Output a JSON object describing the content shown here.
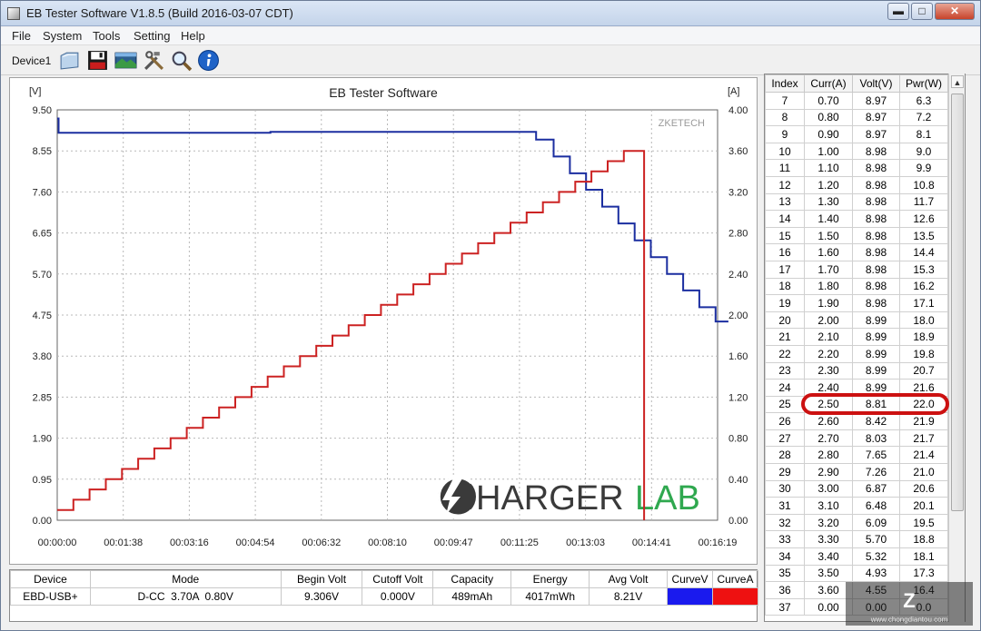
{
  "window": {
    "title": "EB Tester Software V1.8.5 (Build 2016-03-07 CDT)",
    "controls": {
      "minimize": "▬",
      "maximize": "□",
      "close": "✕"
    }
  },
  "menu": [
    "File",
    "System",
    "Tools",
    "Setting",
    "Help"
  ],
  "toolbar": {
    "device": "Device1",
    "buttons": [
      "open-icon",
      "save-icon",
      "image-icon",
      "tools-icon",
      "search-icon",
      "info-icon"
    ]
  },
  "chart": {
    "title": "EB Tester Software",
    "left_unit": "[V]",
    "right_unit": "[A]",
    "brand_small": "ZKETECH",
    "brand_big_dark": "HARGER",
    "brand_big_green": "LAB",
    "colors": {
      "voltage": "#1b2ea0",
      "current": "#cc2222",
      "brand_green": "#2fa84f"
    }
  },
  "chart_data": {
    "type": "line",
    "title": "EB Tester Software",
    "x_ticks": [
      "00:00:00",
      "00:01:38",
      "00:03:16",
      "00:04:54",
      "00:06:32",
      "00:08:10",
      "00:09:47",
      "00:11:25",
      "00:13:03",
      "00:14:41",
      "00:16:19"
    ],
    "y_left_ticks": [
      "9.50",
      "8.55",
      "7.60",
      "6.65",
      "5.70",
      "4.75",
      "3.80",
      "2.85",
      "1.90",
      "0.95",
      "0.00"
    ],
    "y_right_ticks": [
      "4.00",
      "3.60",
      "3.20",
      "2.80",
      "2.40",
      "2.00",
      "1.60",
      "1.20",
      "0.80",
      "0.40",
      "0.00"
    ],
    "ylim_left": [
      0,
      9.5
    ],
    "ylim_right": [
      0,
      4.0
    ],
    "xlim_seconds": [
      0,
      979
    ],
    "grid": true,
    "series": [
      {
        "name": "CurveV",
        "axis": "left",
        "color": "#1b2ea0",
        "points": [
          [
            0,
            9.3
          ],
          [
            2,
            8.97
          ],
          [
            315,
            8.97
          ],
          [
            316,
            8.99
          ],
          [
            700,
            8.99
          ],
          [
            710,
            8.81
          ],
          [
            736,
            8.42
          ],
          [
            760,
            8.03
          ],
          [
            784,
            7.65
          ],
          [
            808,
            7.26
          ],
          [
            832,
            6.87
          ],
          [
            856,
            6.48
          ],
          [
            880,
            6.09
          ],
          [
            904,
            5.7
          ],
          [
            928,
            5.32
          ],
          [
            952,
            4.93
          ],
          [
            976,
            4.6
          ],
          [
            995,
            4.6
          ]
        ]
      },
      {
        "name": "CurveA",
        "axis": "right",
        "color": "#cc2222",
        "points": [
          [
            0,
            0.1
          ],
          [
            24,
            0.2
          ],
          [
            48,
            0.3
          ],
          [
            72,
            0.4
          ],
          [
            96,
            0.5
          ],
          [
            120,
            0.6
          ],
          [
            144,
            0.7
          ],
          [
            168,
            0.8
          ],
          [
            192,
            0.9
          ],
          [
            216,
            1.0
          ],
          [
            240,
            1.1
          ],
          [
            264,
            1.2
          ],
          [
            288,
            1.3
          ],
          [
            312,
            1.4
          ],
          [
            336,
            1.5
          ],
          [
            360,
            1.6
          ],
          [
            384,
            1.7
          ],
          [
            408,
            1.8
          ],
          [
            432,
            1.9
          ],
          [
            456,
            2.0
          ],
          [
            480,
            2.1
          ],
          [
            504,
            2.2
          ],
          [
            528,
            2.3
          ],
          [
            552,
            2.4
          ],
          [
            576,
            2.5
          ],
          [
            600,
            2.6
          ],
          [
            624,
            2.7
          ],
          [
            648,
            2.8
          ],
          [
            672,
            2.9
          ],
          [
            696,
            3.0
          ],
          [
            720,
            3.1
          ],
          [
            744,
            3.2
          ],
          [
            768,
            3.3
          ],
          [
            792,
            3.4
          ],
          [
            816,
            3.5
          ],
          [
            840,
            3.6
          ],
          [
            870,
            3.6
          ],
          [
            870,
            0.0
          ]
        ]
      }
    ]
  },
  "readings": {
    "columns": [
      "Index",
      "Curr(A)",
      "Volt(V)",
      "Pwr(W)"
    ],
    "rows": [
      [
        "7",
        "0.70",
        "8.97",
        "6.3"
      ],
      [
        "8",
        "0.80",
        "8.97",
        "7.2"
      ],
      [
        "9",
        "0.90",
        "8.97",
        "8.1"
      ],
      [
        "10",
        "1.00",
        "8.98",
        "9.0"
      ],
      [
        "11",
        "1.10",
        "8.98",
        "9.9"
      ],
      [
        "12",
        "1.20",
        "8.98",
        "10.8"
      ],
      [
        "13",
        "1.30",
        "8.98",
        "11.7"
      ],
      [
        "14",
        "1.40",
        "8.98",
        "12.6"
      ],
      [
        "15",
        "1.50",
        "8.98",
        "13.5"
      ],
      [
        "16",
        "1.60",
        "8.98",
        "14.4"
      ],
      [
        "17",
        "1.70",
        "8.98",
        "15.3"
      ],
      [
        "18",
        "1.80",
        "8.98",
        "16.2"
      ],
      [
        "19",
        "1.90",
        "8.98",
        "17.1"
      ],
      [
        "20",
        "2.00",
        "8.99",
        "18.0"
      ],
      [
        "21",
        "2.10",
        "8.99",
        "18.9"
      ],
      [
        "22",
        "2.20",
        "8.99",
        "19.8"
      ],
      [
        "23",
        "2.30",
        "8.99",
        "20.7"
      ],
      [
        "24",
        "2.40",
        "8.99",
        "21.6"
      ],
      [
        "25",
        "2.50",
        "8.81",
        "22.0"
      ],
      [
        "26",
        "2.60",
        "8.42",
        "21.9"
      ],
      [
        "27",
        "2.70",
        "8.03",
        "21.7"
      ],
      [
        "28",
        "2.80",
        "7.65",
        "21.4"
      ],
      [
        "29",
        "2.90",
        "7.26",
        "21.0"
      ],
      [
        "30",
        "3.00",
        "6.87",
        "20.6"
      ],
      [
        "31",
        "3.10",
        "6.48",
        "20.1"
      ],
      [
        "32",
        "3.20",
        "6.09",
        "19.5"
      ],
      [
        "33",
        "3.30",
        "5.70",
        "18.8"
      ],
      [
        "34",
        "3.40",
        "5.32",
        "18.1"
      ],
      [
        "35",
        "3.50",
        "4.93",
        "17.3"
      ],
      [
        "36",
        "3.60",
        "4.55",
        "16.4"
      ],
      [
        "37",
        "0.00",
        "0.00",
        "0.0"
      ]
    ],
    "highlighted_index": "25"
  },
  "summary": {
    "headers": [
      "Device",
      "Mode",
      "Begin Volt",
      "Cutoff Volt",
      "Capacity",
      "Energy",
      "Avg Volt",
      "CurveV",
      "CurveA"
    ],
    "values": [
      "EBD-USB+",
      "D-CC  3.70A  0.80V",
      "9.306V",
      "0.000V",
      "489mAh",
      "4017mWh",
      "8.21V"
    ],
    "curve_colors": {
      "CurveV": "#1a1aee",
      "CurveA": "#ee1111"
    }
  },
  "watermark": {
    "text": "www.chongdiantou.com"
  }
}
